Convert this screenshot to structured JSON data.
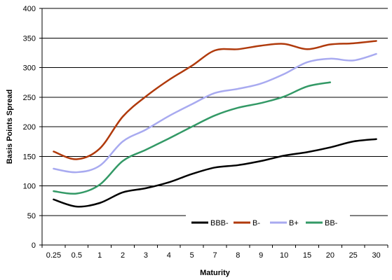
{
  "chart_data": {
    "type": "line",
    "title": "",
    "xlabel": "Maturity",
    "ylabel": "Basis Points Spread",
    "categories": [
      "0.25",
      "0.5",
      "1",
      "2",
      "3",
      "4",
      "5",
      "7",
      "8",
      "9",
      "10",
      "15",
      "20",
      "25",
      "30"
    ],
    "ylim": [
      0,
      400
    ],
    "yticks": [
      "0",
      "50",
      "100",
      "150",
      "200",
      "250",
      "300",
      "350",
      "400"
    ],
    "grid": "horizontal",
    "legend_position": "bottom-right",
    "series": [
      {
        "name": "BBB-",
        "color": "#000000",
        "values": [
          77,
          65,
          71,
          89,
          96,
          106,
          120,
          131,
          135,
          142,
          151,
          157,
          165,
          175,
          179
        ]
      },
      {
        "name": "B-",
        "color": "#b03a0c",
        "values": [
          158,
          145,
          163,
          217,
          251,
          279,
          303,
          329,
          331,
          337,
          340,
          331,
          339,
          341,
          345
        ]
      },
      {
        "name": "B+",
        "color": "#a8aaf0",
        "values": [
          129,
          123,
          134,
          175,
          195,
          218,
          238,
          257,
          264,
          273,
          289,
          309,
          315,
          312,
          323
        ]
      },
      {
        "name": "BB-",
        "color": "#339966",
        "values": [
          91,
          87,
          102,
          142,
          161,
          180,
          200,
          219,
          232,
          240,
          251,
          268,
          275,
          null,
          null
        ]
      }
    ]
  }
}
